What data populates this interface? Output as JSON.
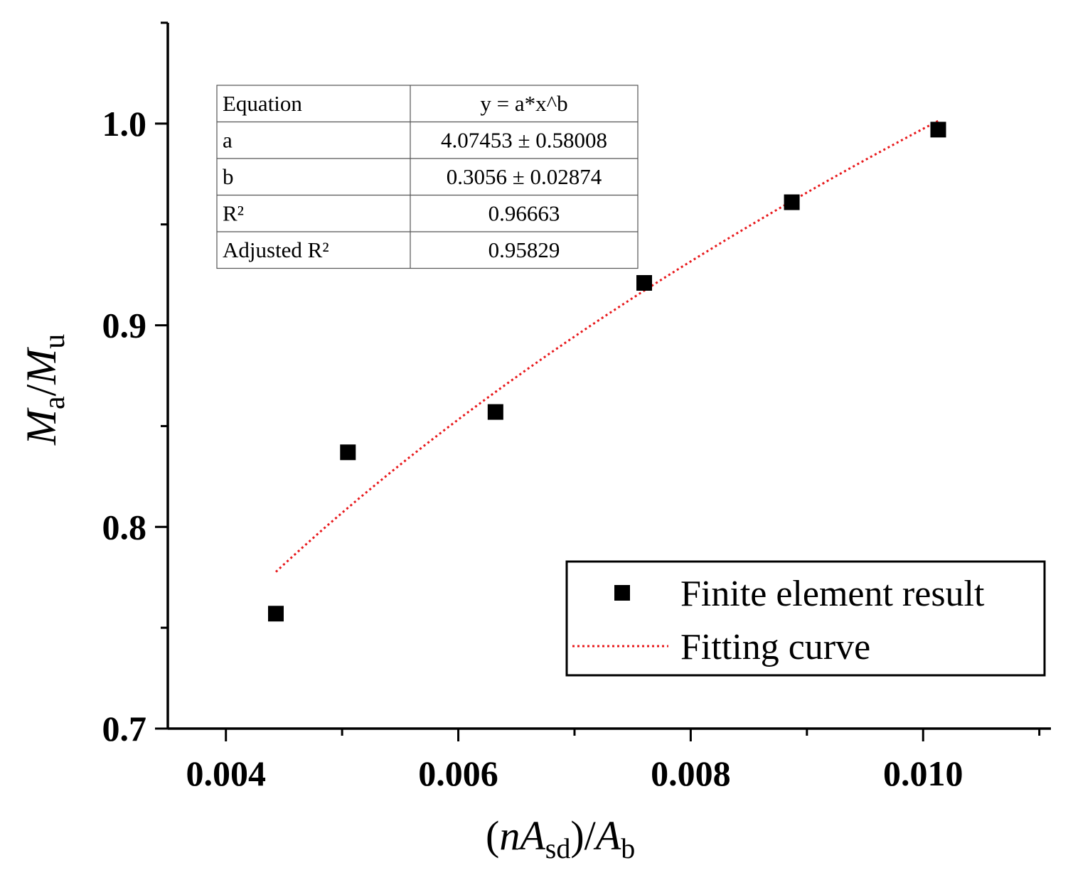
{
  "chart_data": {
    "type": "scatter",
    "title": "",
    "xlabel": {
      "open": "(",
      "n": "n",
      "A1": "A",
      "sub1": "sd",
      "mid": ")/",
      "A2": "A",
      "sub2": "b"
    },
    "ylabel": {
      "M1": "M",
      "sub1": "a",
      "slash": "/",
      "M2": "M",
      "sub2": "u"
    },
    "xlim": [
      0.0035,
      0.0111
    ],
    "ylim": [
      0.7,
      1.05
    ],
    "x_ticks": [
      0.004,
      0.006,
      0.008,
      0.01
    ],
    "x_tick_labels": [
      "0.004",
      "0.006",
      "0.008",
      "0.010"
    ],
    "x_minor_ticks": [
      0.005,
      0.007,
      0.009,
      0.011
    ],
    "y_ticks": [
      0.7,
      0.8,
      0.9,
      1.0
    ],
    "y_tick_labels": [
      "0.7",
      "0.8",
      "0.9",
      "1.0"
    ],
    "y_minor_ticks": [
      0.75,
      0.85,
      0.95
    ],
    "grid": false,
    "series": [
      {
        "name": "Finite element result",
        "kind": "scatter",
        "marker": "square",
        "color": "#000000",
        "x": [
          0.00443,
          0.00505,
          0.00632,
          0.0076,
          0.00887,
          0.01013
        ],
        "y": [
          0.757,
          0.837,
          0.857,
          0.921,
          0.961,
          0.997
        ]
      },
      {
        "name": "Fitting curve",
        "kind": "line",
        "style": "dotted",
        "color": "#e8191c",
        "equation": "y = a*x^b",
        "a": 4.07453,
        "b": 0.3056,
        "x_range": [
          0.00443,
          0.01013
        ]
      }
    ],
    "legend": {
      "position": "bottom-right",
      "entries": [
        "Finite element result",
        "Fitting curve"
      ]
    },
    "stats_table": {
      "rows": [
        [
          "Equation",
          "y = a*x^b"
        ],
        [
          "a",
          "4.07453 ± 0.58008"
        ],
        [
          "b",
          "0.3056 ± 0.02874"
        ],
        [
          "R²",
          "0.96663"
        ],
        [
          "Adjusted R²",
          "0.95829"
        ]
      ]
    }
  }
}
